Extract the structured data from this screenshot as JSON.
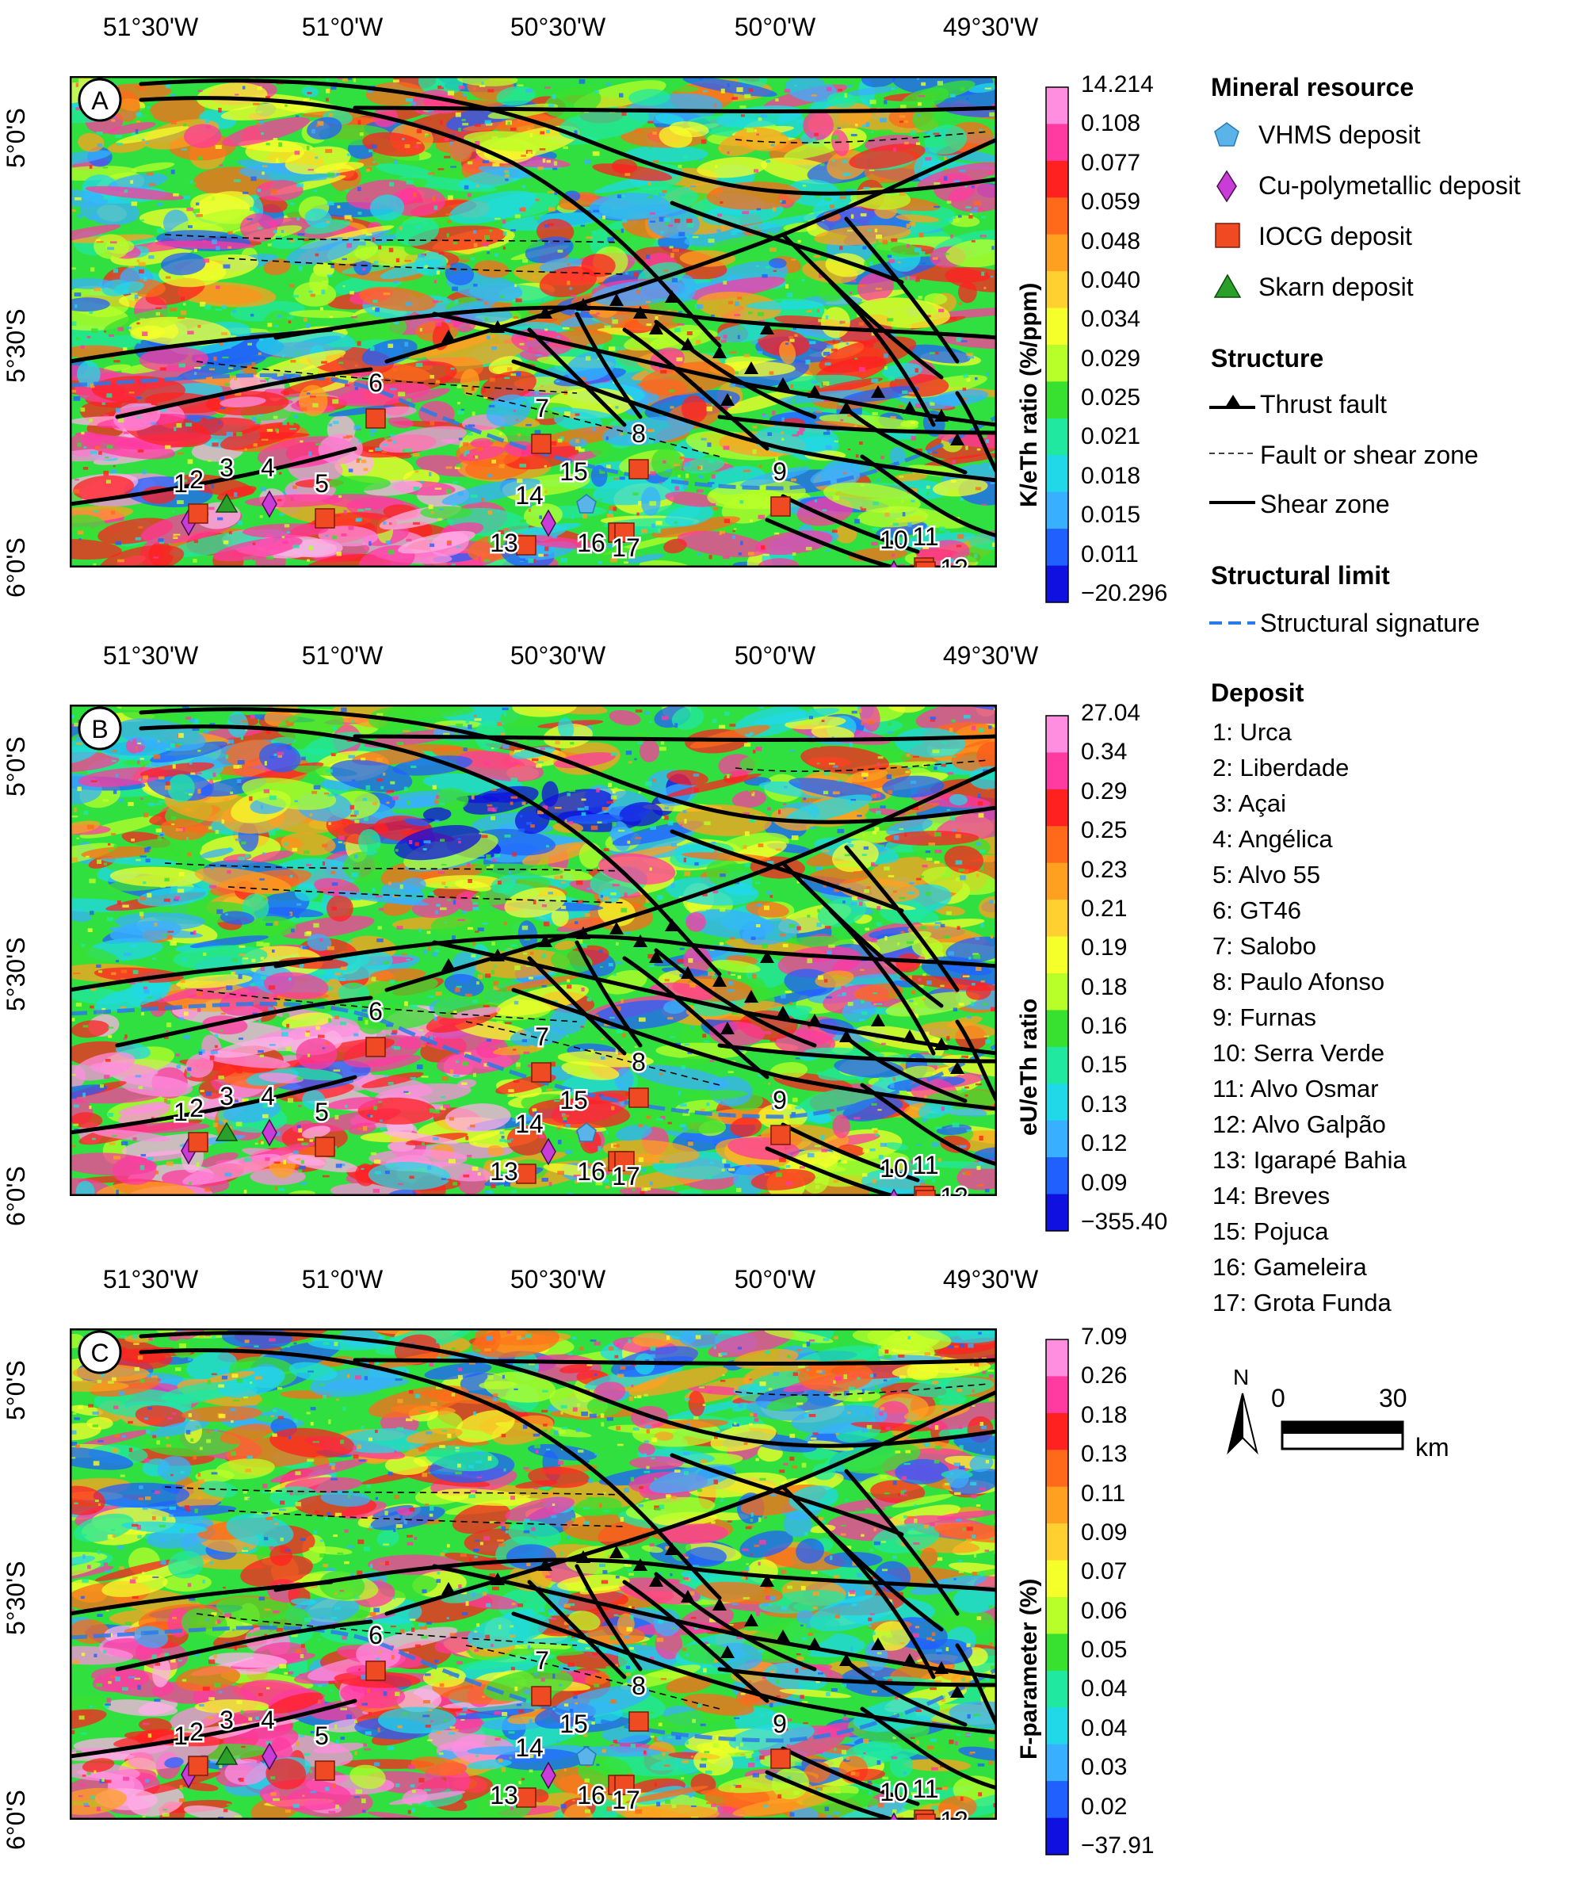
{
  "lon_labels": [
    "51°30'W",
    "51°0'W",
    "50°30'W",
    "50°0'W",
    "49°30'W"
  ],
  "lat_labels": [
    "5°0'S",
    "5°30'S",
    "6°0'S"
  ],
  "panels": [
    {
      "letter": "A",
      "colorbar_title": "K/eTh ratio (%/ppm)",
      "ticks": [
        "14.214",
        "0.108",
        "0.077",
        "0.059",
        "0.048",
        "0.040",
        "0.034",
        "0.029",
        "0.025",
        "0.021",
        "0.018",
        "0.015",
        "0.011",
        "−20.296"
      ]
    },
    {
      "letter": "B",
      "colorbar_title": "eU/eTh ratio",
      "ticks": [
        "27.04",
        "0.34",
        "0.29",
        "0.25",
        "0.23",
        "0.21",
        "0.19",
        "0.18",
        "0.16",
        "0.15",
        "0.13",
        "0.12",
        "0.09",
        "−355.40"
      ]
    },
    {
      "letter": "C",
      "colorbar_title": "F-parameter (%)",
      "ticks": [
        "7.09",
        "0.26",
        "0.18",
        "0.13",
        "0.11",
        "0.09",
        "0.07",
        "0.06",
        "0.05",
        "0.04",
        "0.04",
        "0.03",
        "0.02",
        "−37.91"
      ]
    }
  ],
  "colorbar_colors": [
    "#ff8ee0",
    "#ff3aa0",
    "#ff2020",
    "#ff6a1a",
    "#ffa020",
    "#ffd030",
    "#f5ff2a",
    "#b8ff2a",
    "#38e030",
    "#20e8a0",
    "#20d8e8",
    "#38b0ff",
    "#2060ff",
    "#1010e0"
  ],
  "legend": {
    "mineral_heading": "Mineral resource",
    "vhms": "VHMS deposit",
    "cupoly": "Cu-polymetallic deposit",
    "iocg": "IOCG deposit",
    "skarn": "Skarn deposit",
    "structure_heading": "Structure",
    "thrust": "Thrust fault",
    "fault": "Fault or shear zone",
    "shear": "Shear zone",
    "limit_heading": "Structural limit",
    "signature": "Structural signature",
    "deposit_heading": "Deposit"
  },
  "deposits": [
    "1: Urca",
    "2: Liberdade",
    "3: Açai",
    "4: Angélica",
    "5: Alvo 55",
    "6: GT46",
    "7: Salobo",
    "8: Paulo Afonso",
    "9: Furnas",
    "10: Serra Verde",
    "11: Alvo Osmar",
    "12: Alvo Galpão",
    "13: Igarapé Bahia",
    "14: Breves",
    "15: Pojuca",
    "16: Gameleira",
    "17: Grota Funda"
  ],
  "markers": [
    {
      "n": "1",
      "type": "cupoly"
    },
    {
      "n": "2",
      "type": "iocg"
    },
    {
      "n": "3",
      "type": "skarn"
    },
    {
      "n": "4",
      "type": "cupoly"
    },
    {
      "n": "5",
      "type": "iocg"
    },
    {
      "n": "6",
      "type": "iocg"
    },
    {
      "n": "7",
      "type": "iocg"
    },
    {
      "n": "8",
      "type": "iocg"
    },
    {
      "n": "9",
      "type": "iocg"
    },
    {
      "n": "10",
      "type": "cupoly"
    },
    {
      "n": "11",
      "type": "iocg"
    },
    {
      "n": "12",
      "type": "iocg"
    },
    {
      "n": "13",
      "type": "iocg"
    },
    {
      "n": "14",
      "type": "cupoly"
    },
    {
      "n": "15",
      "type": "vhms"
    },
    {
      "n": "16",
      "type": "iocg"
    },
    {
      "n": "17",
      "type": "iocg"
    }
  ],
  "scale": {
    "north": "N",
    "zero": "0",
    "max": "30",
    "unit": "km"
  }
}
